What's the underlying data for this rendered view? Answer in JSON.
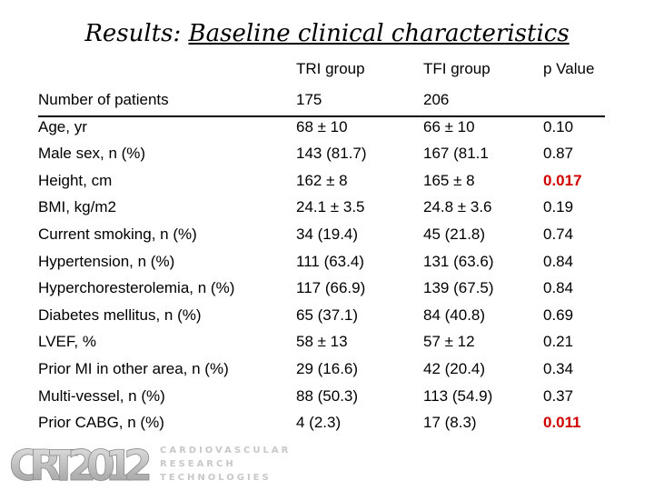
{
  "title": {
    "prefix": "Results: ",
    "main": "Baseline clinical characteristics"
  },
  "table": {
    "columns": [
      "TRI group",
      "TFI group",
      "p Value"
    ],
    "rows": [
      {
        "label": "Number of patients",
        "tri": "175",
        "tfi": "206",
        "p": ""
      },
      {
        "label": "Age, yr",
        "tri": "68 ± 10",
        "tfi": "66 ± 10",
        "p": "0.10"
      },
      {
        "label": "Male sex, n (%)",
        "tri": "143 (81.7)",
        "tfi": "167 (81.1",
        "p": "0.87"
      },
      {
        "label": "Height, cm",
        "tri": "162 ± 8",
        "tfi": "165 ± 8",
        "p": "0.017"
      },
      {
        "label": "BMI, kg/m2",
        "tri": "24.1 ± 3.5",
        "tfi": "24.8 ± 3.6",
        "p": "0.19"
      },
      {
        "label": "Current smoking, n (%)",
        "tri": "34 (19.4)",
        "tfi": "45 (21.8)",
        "p": "0.74"
      },
      {
        "label": "Hypertension, n (%)",
        "tri": "111 (63.4)",
        "tfi": "131 (63.6)",
        "p": "0.84"
      },
      {
        "label": "Hyperchoresterolemia, n (%)",
        "tri": "117 (66.9)",
        "tfi": "139 (67.5)",
        "p": "0.84"
      },
      {
        "label": "Diabetes mellitus, n (%)",
        "tri": "65 (37.1)",
        "tfi": "84 (40.8)",
        "p": "0.69"
      },
      {
        "label": "LVEF, %",
        "tri": "58 ± 13",
        "tfi": "57 ± 12",
        "p": "0.21"
      },
      {
        "label": "Prior MI in other area, n (%)",
        "tri": "29 (16.6)",
        "tfi": "42 (20.4)",
        "p": "0.34"
      },
      {
        "label": "Multi-vessel, n (%)",
        "tri": "88 (50.3)",
        "tfi": "113 (54.9)",
        "p": "0.37"
      },
      {
        "label": "Prior CABG, n (%)",
        "tri": "4 (2.3)",
        "tfi": "17 (8.3)",
        "p": "0.011"
      }
    ],
    "significant_color": "#d00000"
  },
  "footer": {
    "logo_text": "CRT2012",
    "logo_lines": [
      "CARDIOVASCULAR",
      "RESEARCH",
      "TECHNOLOGIES"
    ]
  }
}
